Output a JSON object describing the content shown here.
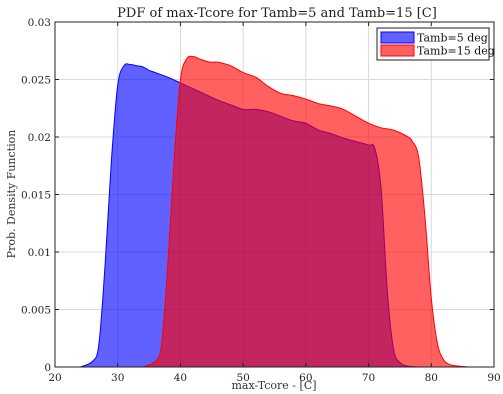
{
  "chart_data": {
    "type": "area",
    "title": "PDF of max-Tcore for Tamb=5 and Tamb=15 [C]",
    "xlabel": "max-Tcore - [C]",
    "ylabel": "Prob. Density Function",
    "xlim": [
      20,
      90
    ],
    "ylim": [
      0,
      0.03
    ],
    "xticks": [
      20,
      30,
      40,
      50,
      60,
      70,
      80,
      90
    ],
    "xtick_labels": [
      "20",
      "30",
      "40",
      "50",
      "60",
      "70",
      "80",
      "90"
    ],
    "yticks": [
      0,
      0.005,
      0.01,
      0.015,
      0.02,
      0.025,
      0.03
    ],
    "ytick_labels": [
      "0",
      "0.005",
      "0.01",
      "0.015",
      "0.02",
      "0.025",
      "0.03"
    ],
    "grid": true,
    "legend_position": "top-right",
    "series": [
      {
        "name": "Tamb=5 deg",
        "color": "#0000ff",
        "x": [
          24,
          26,
          27,
          28,
          29,
          30,
          31,
          32,
          33,
          34,
          35,
          36,
          38,
          40,
          42,
          44,
          46,
          48,
          50,
          52,
          54,
          56,
          58,
          60,
          62,
          64,
          66,
          68,
          70,
          71,
          72,
          73,
          74,
          75,
          76,
          78
        ],
        "values": [
          0,
          0.0005,
          0.002,
          0.009,
          0.018,
          0.0245,
          0.0262,
          0.0263,
          0.0262,
          0.0261,
          0.0258,
          0.0256,
          0.0252,
          0.0247,
          0.0242,
          0.0237,
          0.0232,
          0.0228,
          0.0224,
          0.0224,
          0.0222,
          0.0218,
          0.0214,
          0.0212,
          0.0206,
          0.0203,
          0.0199,
          0.0196,
          0.0193,
          0.019,
          0.0155,
          0.0065,
          0.0015,
          0.0004,
          0.0001,
          0
        ]
      },
      {
        "name": "Tamb=15 deg",
        "color": "#ff0000",
        "x": [
          34,
          36,
          37,
          38,
          39,
          40,
          41,
          42,
          43,
          44,
          45,
          46,
          48,
          50,
          52,
          54,
          56,
          58,
          60,
          62,
          64,
          66,
          68,
          70,
          72,
          74,
          76,
          77,
          78,
          79,
          80,
          81,
          82,
          83,
          84,
          86
        ],
        "values": [
          0,
          0.0005,
          0.002,
          0.009,
          0.018,
          0.025,
          0.0268,
          0.027,
          0.0268,
          0.0266,
          0.0265,
          0.0265,
          0.0262,
          0.0256,
          0.0252,
          0.0244,
          0.0238,
          0.0236,
          0.0233,
          0.0229,
          0.0227,
          0.0224,
          0.0218,
          0.0212,
          0.0208,
          0.0206,
          0.0201,
          0.0196,
          0.0182,
          0.013,
          0.006,
          0.002,
          0.0006,
          0.0002,
          0.0001,
          0
        ]
      }
    ]
  }
}
